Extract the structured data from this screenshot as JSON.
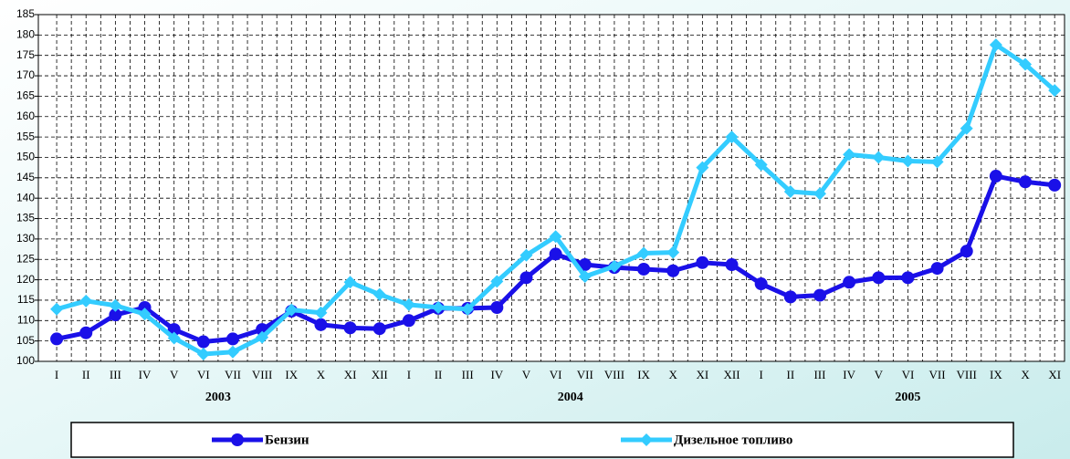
{
  "chart_data": {
    "type": "line",
    "categories": [
      "I",
      "II",
      "III",
      "IV",
      "V",
      "VI",
      "VII",
      "VIII",
      "IX",
      "X",
      "XI",
      "XII",
      "I",
      "II",
      "III",
      "IV",
      "V",
      "VI",
      "VII",
      "VIII",
      "IX",
      "X",
      "XI",
      "XII",
      "I",
      "II",
      "III",
      "IV",
      "V",
      "VI",
      "VII",
      "VIII",
      "IX",
      "X",
      "XI"
    ],
    "groups": [
      "2003",
      "2004",
      "2005"
    ],
    "series": [
      {
        "name": "Бензин",
        "color": "#1a10e8",
        "marker": "circle",
        "values": [
          105.5,
          107,
          111.4,
          113.2,
          107.8,
          104.8,
          105.5,
          107.8,
          112.3,
          109,
          108.2,
          108,
          110,
          113,
          113,
          113.2,
          120.5,
          126.3,
          123.7,
          123,
          122.6,
          122.2,
          124.2,
          123.7,
          119,
          115.8,
          116.2,
          119.4,
          120.5,
          120.5,
          122.8,
          127,
          145.4,
          144,
          143.2
        ]
      },
      {
        "name": "Дизельное топливо",
        "color": "#33ccff",
        "marker": "diamond",
        "values": [
          112.8,
          114.8,
          113.7,
          111.6,
          105.7,
          101.8,
          102.3,
          105.9,
          112.6,
          111.9,
          119.4,
          116.4,
          113.9,
          113.2,
          112.8,
          119.6,
          126,
          130.6,
          120.8,
          123.3,
          126.5,
          126.7,
          147.5,
          155,
          148.2,
          141.6,
          141.1,
          150.7,
          150,
          149.1,
          148.9,
          157.1,
          177.6,
          172.8,
          166.4
        ]
      }
    ],
    "ylim": [
      100,
      185
    ],
    "yticks": [
      100,
      105,
      110,
      115,
      120,
      125,
      130,
      135,
      140,
      145,
      150,
      155,
      160,
      165,
      170,
      175,
      180,
      185
    ],
    "grid": true,
    "legend": "bottom"
  }
}
